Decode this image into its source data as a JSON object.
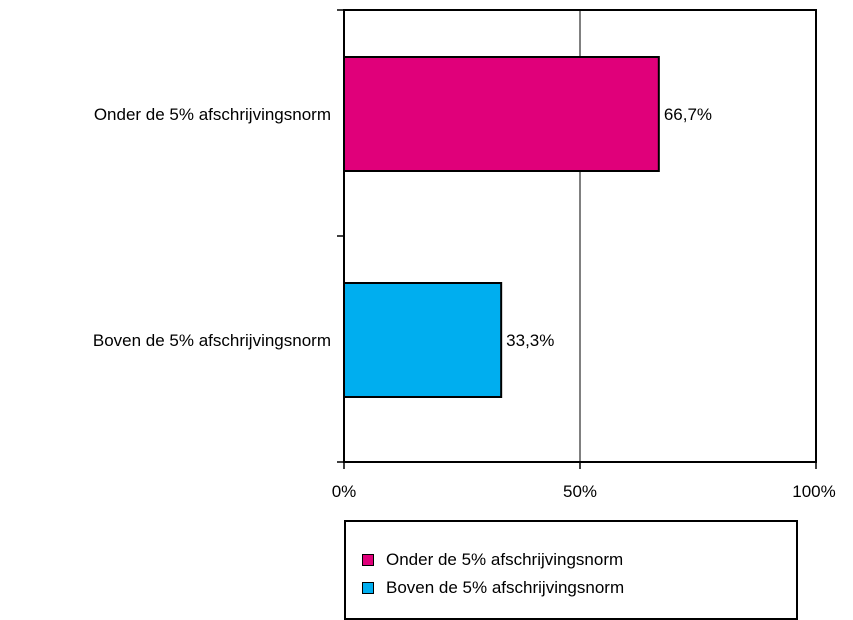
{
  "chart_data": {
    "type": "bar",
    "orientation": "horizontal",
    "categories": [
      "Onder de 5% afschrijvingsnorm",
      "Boven de 5% afschrijvingsnorm"
    ],
    "values": [
      66.7,
      33.3
    ],
    "data_labels": [
      "66,7%",
      "33,3%"
    ],
    "colors": [
      "#e0007a",
      "#00aeef"
    ],
    "xlim": [
      0,
      100
    ],
    "x_ticks": [
      0,
      50,
      100
    ],
    "x_tick_labels": [
      "0%",
      "50%",
      "100%"
    ],
    "grid": "vertical at 50%",
    "legend_position": "bottom-right",
    "legend": [
      {
        "label": "Onder de 5% afschrijvingsnorm",
        "color": "#e0007a"
      },
      {
        "label": "Boven de 5% afschrijvingsnorm",
        "color": "#00aeef"
      }
    ]
  }
}
